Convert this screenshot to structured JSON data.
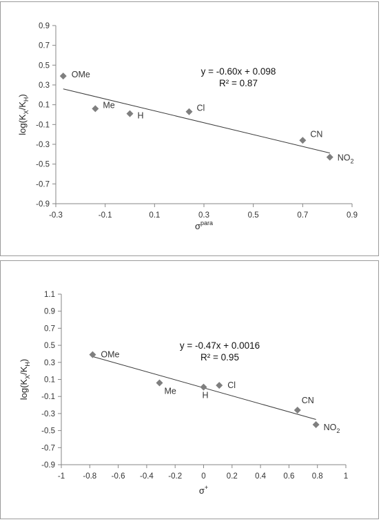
{
  "chart_data": [
    {
      "type": "scatter",
      "xlabel": "σ",
      "xlabel_sup": "para",
      "ylabel_parts": [
        "log(K",
        "X",
        "/K",
        "H",
        ")"
      ],
      "xlim": [
        -0.3,
        0.9
      ],
      "ylim": [
        -0.9,
        0.9
      ],
      "xticks": [
        -0.3,
        -0.1,
        0.1,
        0.3,
        0.5,
        0.7,
        0.9
      ],
      "yticks": [
        -0.9,
        -0.7,
        -0.5,
        -0.3,
        -0.1,
        0.1,
        0.3,
        0.5,
        0.7,
        0.9
      ],
      "xtick_labels": [
        "-0.3",
        "-0.1",
        "0.1",
        "0.3",
        "0.5",
        "0.7",
        "0.9"
      ],
      "ytick_labels": [
        "-0.9",
        "-0.7",
        "-0.5",
        "-0.3",
        "-0.1",
        "0.1",
        "0.3",
        "0.5",
        "0.7",
        "0.9"
      ],
      "points": [
        {
          "label": "OMe",
          "x": -0.27,
          "y": 0.39
        },
        {
          "label": "Me",
          "x": -0.14,
          "y": 0.06
        },
        {
          "label": "H",
          "x": 0.0,
          "y": 0.01
        },
        {
          "label": "Cl",
          "x": 0.24,
          "y": 0.03
        },
        {
          "label": "CN",
          "x": 0.7,
          "y": -0.26
        },
        {
          "label": "NO2",
          "label_main": "NO",
          "label_sub": "2",
          "x": 0.81,
          "y": -0.43
        }
      ],
      "trendline": {
        "slope": -0.6,
        "intercept": 0.098,
        "x_range": [
          -0.27,
          0.81
        ]
      },
      "equation": "y = -0.60x + 0.098",
      "r_squared": "R² = 0.87",
      "grid": false,
      "marker_color": "#7f7f7f"
    },
    {
      "type": "scatter",
      "xlabel": "σ",
      "xlabel_sup": "+",
      "ylabel_parts": [
        "log(K",
        "X",
        "/K",
        "H",
        ")"
      ],
      "xlim": [
        -1,
        1
      ],
      "ylim": [
        -0.9,
        1.1
      ],
      "xticks": [
        -1,
        -0.8,
        -0.6,
        -0.4,
        -0.2,
        0,
        0.2,
        0.4,
        0.6,
        0.8,
        1
      ],
      "yticks": [
        -0.9,
        -0.7,
        -0.5,
        -0.3,
        -0.1,
        0.1,
        0.3,
        0.5,
        0.7,
        0.9,
        1.1
      ],
      "xtick_labels": [
        "-1",
        "-0.8",
        "-0.6",
        "-0.4",
        "-0.2",
        "0",
        "0.2",
        "0.4",
        "0.6",
        "0.8",
        "1"
      ],
      "ytick_labels": [
        "-0.9",
        "-0.7",
        "-0.5",
        "-0.3",
        "-0.1",
        "0.1",
        "0.3",
        "0.5",
        "0.7",
        "0.9",
        "1.1"
      ],
      "points": [
        {
          "label": "OMe",
          "x": -0.78,
          "y": 0.39
        },
        {
          "label": "Me",
          "x": -0.31,
          "y": 0.06
        },
        {
          "label": "H",
          "x": 0.0,
          "y": 0.01
        },
        {
          "label": "Cl",
          "x": 0.11,
          "y": 0.03
        },
        {
          "label": "CN",
          "x": 0.66,
          "y": -0.26
        },
        {
          "label": "NO2",
          "label_main": "NO",
          "label_sub": "2",
          "x": 0.79,
          "y": -0.43
        }
      ],
      "trendline": {
        "slope": -0.47,
        "intercept": 0.0016,
        "x_range": [
          -0.78,
          0.79
        ]
      },
      "equation": "y = -0.47x + 0.0016",
      "r_squared": "R² = 0.95",
      "grid": false,
      "marker_color": "#7f7f7f"
    }
  ]
}
